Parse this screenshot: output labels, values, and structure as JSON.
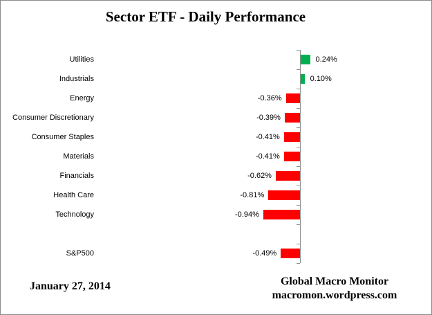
{
  "chart_data": {
    "type": "bar",
    "orientation": "horizontal",
    "title": "Sector ETF - Daily Performance",
    "unit": "percent",
    "legend": "none",
    "grid": "off",
    "categories": [
      "Utilities",
      "Industrials",
      "Energy",
      "Consumer Discretionary",
      "Consumer Staples",
      "Materials",
      "Financials",
      "Health Care",
      "Technology",
      "",
      "S&P500"
    ],
    "values": [
      0.24,
      0.1,
      -0.36,
      -0.39,
      -0.41,
      -0.41,
      -0.62,
      -0.81,
      -0.94,
      null,
      -0.49
    ],
    "value_labels": [
      "0.24%",
      "0.10%",
      "-0.36%",
      "-0.39%",
      "-0.41%",
      "-0.41%",
      "-0.62%",
      "-0.81%",
      "-0.94%",
      null,
      "-0.49%"
    ]
  },
  "footer": {
    "date": "January 27, 2014",
    "brand": "Global Macro Monitor",
    "url": "macromon.wordpress.com"
  },
  "colors": {
    "positive": "#00B050",
    "negative": "#FF0000",
    "axis": "#8C8C8C"
  }
}
